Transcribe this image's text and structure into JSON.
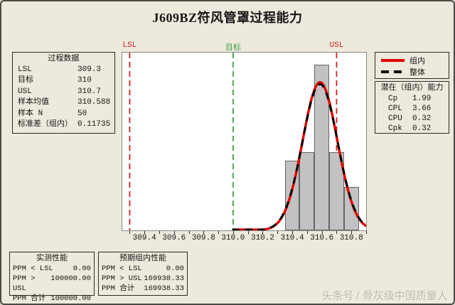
{
  "title": "J609BZ符风管罩过程能力",
  "colors": {
    "background": "#EDE9DC",
    "plot_background": "#FFFFFF",
    "bar_fill": "#C2C2C2",
    "spec_red": "#CC2222",
    "target_green": "#44A148",
    "within_curve": "#E00000",
    "overall_curve": "#000000"
  },
  "process_data": {
    "header": "过程数据",
    "rows": [
      {
        "label": "LSL",
        "value": "309.3"
      },
      {
        "label": "目标",
        "value": "310"
      },
      {
        "label": "USL",
        "value": "310.7"
      },
      {
        "label": "样本均值",
        "value": "310.588"
      },
      {
        "label": "样本 N",
        "value": "50"
      },
      {
        "label": "标准差（组内）",
        "value": "0.11735"
      }
    ]
  },
  "legend": {
    "items": [
      {
        "label": "组内",
        "style": "solid-red"
      },
      {
        "label": "整体",
        "style": "dashed-black"
      }
    ]
  },
  "capability": {
    "header": "潜在（组内）能力",
    "rows": [
      {
        "label": "Cp",
        "value": "1.99"
      },
      {
        "label": "CPL",
        "value": "3.66"
      },
      {
        "label": "CPU",
        "value": "0.32"
      },
      {
        "label": "Cpk",
        "value": "0.32"
      }
    ]
  },
  "observed_performance": {
    "header": "实测性能",
    "rows": [
      {
        "label": "PPM < LSL",
        "value": "0.00"
      },
      {
        "label": "PPM > USL",
        "value": "100000.00"
      },
      {
        "label": "PPM 合计",
        "value": "100000.00"
      }
    ]
  },
  "expected_performance": {
    "header": "预期组内性能",
    "rows": [
      {
        "label": "PPM < LSL",
        "value": "0.00"
      },
      {
        "label": "PPM > USL",
        "value": "169938.33"
      },
      {
        "label": "PPM 合计",
        "value": "169938.33"
      }
    ]
  },
  "watermark": "头条号 / 骨灰级中国质量人",
  "chart_data": {
    "type": "bar",
    "subtype": "capability-histogram-with-normal-curves",
    "title": "J609BZ符风管罩过程能力",
    "bins": {
      "centers": [
        310.4,
        310.5,
        310.6,
        310.7,
        310.8
      ],
      "counts": [
        8,
        9,
        19,
        9,
        5
      ],
      "bin_width": 0.1
    },
    "n": 50,
    "curves": [
      {
        "id": "within",
        "name": "组内",
        "mean": 310.588,
        "sd": 0.11735,
        "color": "#E00000",
        "style": "solid"
      },
      {
        "id": "overall",
        "name": "整体",
        "mean": 310.588,
        "sd": 0.1189,
        "color": "#000000",
        "style": "dashed"
      }
    ],
    "spec_lines": [
      {
        "id": "lsl",
        "label": "LSL",
        "value": 309.3,
        "color": "#CC2222"
      },
      {
        "id": "target",
        "label": "目标",
        "value": 310.0,
        "color": "#44A148"
      },
      {
        "id": "usl",
        "label": "USL",
        "value": 310.7,
        "color": "#CC2222"
      }
    ],
    "x_tick_labels": [
      "309.4",
      "309.6",
      "309.8",
      "310.0",
      "310.2",
      "310.4",
      "310.6",
      "310.8"
    ],
    "minor_tick_step": 0.1,
    "xlim": [
      309.25,
      310.9
    ],
    "ylim": [
      0,
      20.4
    ],
    "grid": false,
    "legend_position": "right"
  }
}
